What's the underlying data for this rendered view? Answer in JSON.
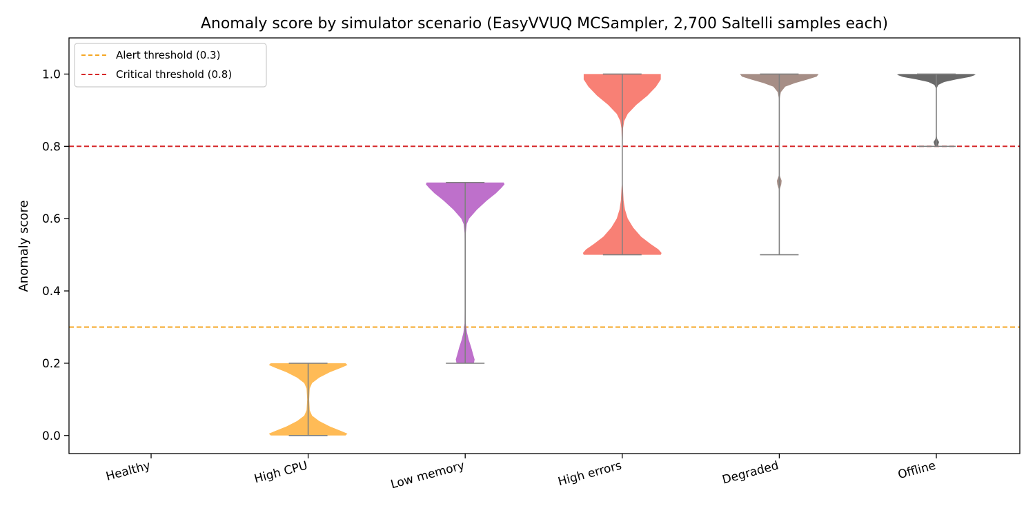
{
  "chart_data": {
    "type": "violin",
    "title": "Anomaly score by simulator scenario  (EasyVVUQ MCSampler, 2,700 Saltelli samples each)",
    "xlabel": "",
    "ylabel": "Anomaly score",
    "ylim": [
      -0.05,
      1.1
    ],
    "yticks": [
      0.0,
      0.2,
      0.4,
      0.6,
      0.8,
      1.0
    ],
    "ytick_labels": [
      "0.0",
      "0.2",
      "0.4",
      "0.6",
      "0.8",
      "1.0"
    ],
    "grid": false,
    "legend_position": "top-left",
    "categories": [
      "Healthy",
      "High CPU",
      "Low memory",
      "High errors",
      "Degraded",
      "Offline"
    ],
    "series": [
      {
        "category": "Healthy",
        "color": "#4caf50",
        "min": 0.0,
        "max": 0.0,
        "profile": []
      },
      {
        "category": "High CPU",
        "color": "#ffb74d",
        "min": 0.0,
        "max": 0.2,
        "profile": [
          [
            0.0,
            0.95
          ],
          [
            0.005,
            1.0
          ],
          [
            0.012,
            0.85
          ],
          [
            0.025,
            0.55
          ],
          [
            0.04,
            0.28
          ],
          [
            0.055,
            0.1
          ],
          [
            0.07,
            0.04
          ],
          [
            0.1,
            0.025
          ],
          [
            0.13,
            0.04
          ],
          [
            0.145,
            0.1
          ],
          [
            0.16,
            0.28
          ],
          [
            0.175,
            0.55
          ],
          [
            0.188,
            0.85
          ],
          [
            0.195,
            1.0
          ],
          [
            0.2,
            0.95
          ]
        ]
      },
      {
        "category": "Low memory",
        "color": "#ba68c8",
        "min": 0.2,
        "max": 0.7,
        "profile": [
          [
            0.2,
            0.22
          ],
          [
            0.21,
            0.24
          ],
          [
            0.225,
            0.2
          ],
          [
            0.245,
            0.15
          ],
          [
            0.265,
            0.09
          ],
          [
            0.285,
            0.045
          ],
          [
            0.31,
            0.015
          ],
          [
            0.4,
            0.008
          ],
          [
            0.5,
            0.008
          ],
          [
            0.56,
            0.015
          ],
          [
            0.585,
            0.04
          ],
          [
            0.6,
            0.1
          ],
          [
            0.625,
            0.3
          ],
          [
            0.65,
            0.55
          ],
          [
            0.67,
            0.78
          ],
          [
            0.685,
            0.92
          ],
          [
            0.695,
            1.0
          ],
          [
            0.7,
            0.98
          ]
        ]
      },
      {
        "category": "High errors",
        "color": "#f8796e",
        "min": 0.5,
        "max": 1.0,
        "profile": [
          [
            0.5,
            0.98
          ],
          [
            0.505,
            1.0
          ],
          [
            0.515,
            0.92
          ],
          [
            0.53,
            0.72
          ],
          [
            0.55,
            0.48
          ],
          [
            0.575,
            0.28
          ],
          [
            0.6,
            0.14
          ],
          [
            0.625,
            0.07
          ],
          [
            0.65,
            0.035
          ],
          [
            0.7,
            0.01
          ],
          [
            0.8,
            0.008
          ],
          [
            0.85,
            0.02
          ],
          [
            0.87,
            0.05
          ],
          [
            0.89,
            0.14
          ],
          [
            0.915,
            0.36
          ],
          [
            0.94,
            0.64
          ],
          [
            0.965,
            0.86
          ],
          [
            0.985,
            0.98
          ],
          [
            1.0,
            0.98
          ]
        ]
      },
      {
        "category": "Degraded",
        "color": "#a1887f",
        "min": 0.5,
        "max": 1.0,
        "profile": [
          [
            0.5,
            0.01
          ],
          [
            0.52,
            0.004
          ],
          [
            0.6,
            0.004
          ],
          [
            0.68,
            0.008
          ],
          [
            0.695,
            0.05
          ],
          [
            0.705,
            0.06
          ],
          [
            0.72,
            0.008
          ],
          [
            0.8,
            0.004
          ],
          [
            0.93,
            0.006
          ],
          [
            0.95,
            0.04
          ],
          [
            0.965,
            0.15
          ],
          [
            0.975,
            0.4
          ],
          [
            0.985,
            0.72
          ],
          [
            0.993,
            0.95
          ],
          [
            1.0,
            1.0
          ]
        ]
      },
      {
        "category": "Offline",
        "color": "#616161",
        "min": 0.8,
        "max": 1.0,
        "profile": [
          [
            0.8,
            0.02
          ],
          [
            0.805,
            0.05
          ],
          [
            0.812,
            0.07
          ],
          [
            0.82,
            0.025
          ],
          [
            0.83,
            0.005
          ],
          [
            0.9,
            0.004
          ],
          [
            0.96,
            0.006
          ],
          [
            0.97,
            0.05
          ],
          [
            0.978,
            0.2
          ],
          [
            0.985,
            0.5
          ],
          [
            0.992,
            0.85
          ],
          [
            0.998,
            1.0
          ],
          [
            1.0,
            0.95
          ]
        ]
      }
    ],
    "reference_lines": [
      {
        "label": "Alert threshold (0.3)",
        "y": 0.3,
        "color": "#f5a623",
        "style": "dashed"
      },
      {
        "label": "Critical threshold (0.8)",
        "y": 0.8,
        "color": "#d62728",
        "style": "dashed"
      }
    ]
  }
}
